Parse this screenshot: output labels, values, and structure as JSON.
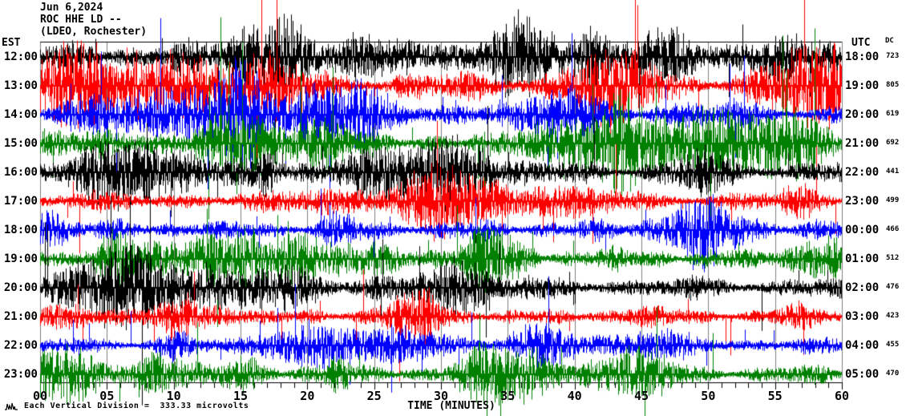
{
  "header": {
    "date": "Jun 6,2024",
    "station": "ROC HHE LD --",
    "network": "(LDEO, Rochester)"
  },
  "left_axis_label": "EST",
  "right_axis_label": "UTC",
  "dc_column_label": "DC",
  "x_axis": {
    "tick_labels": [
      "00",
      "05",
      "10",
      "15",
      "20",
      "25",
      "30",
      "35",
      "40",
      "45",
      "50",
      "55",
      "60"
    ],
    "title": "TIME (MINUTES)"
  },
  "footer": {
    "scale_note": "Each Vertical Division =  333.33 microvolts",
    "icon": "seismic-wiggle-icon"
  },
  "colors": {
    "trace_black": "#000000",
    "trace_red": "#ff0000",
    "trace_blue": "#0000ff",
    "trace_green": "#008000",
    "grid": "#808080",
    "axis": "#000000",
    "background": "#ffffff"
  },
  "chart_data": {
    "type": "line",
    "subtype": "seismogram-helicorder",
    "title": "ROC HHE LD -- (LDEO, Rochester)",
    "date": "Jun 6,2024",
    "xlabel": "TIME (MINUTES)",
    "x_range_minutes": [
      0,
      60
    ],
    "x_major_tick_minutes": 5,
    "x_minor_tick_minutes": 1,
    "grid": "vertical 5-minute gray lines",
    "vertical_division_microvolts": 333.33,
    "rows": [
      {
        "est": "12:00",
        "utc": "18:00",
        "dc": "723",
        "color": "#000000",
        "amplitude": 17,
        "seed": 11
      },
      {
        "est": "13:00",
        "utc": "19:00",
        "dc": "805",
        "color": "#ff0000",
        "amplitude": 16,
        "seed": 23
      },
      {
        "est": "14:00",
        "utc": "20:00",
        "dc": "619",
        "color": "#0000ff",
        "amplitude": 13,
        "seed": 37
      },
      {
        "est": "15:00",
        "utc": "21:00",
        "dc": "692",
        "color": "#008000",
        "amplitude": 15,
        "seed": 41
      },
      {
        "est": "16:00",
        "utc": "22:00",
        "dc": "441",
        "color": "#000000",
        "amplitude": 14,
        "seed": 53
      },
      {
        "est": "17:00",
        "utc": "23:00",
        "dc": "499",
        "color": "#ff0000",
        "amplitude": 11,
        "seed": 67
      },
      {
        "est": "18:00",
        "utc": "00:00",
        "dc": "466",
        "color": "#0000ff",
        "amplitude": 11,
        "seed": 79
      },
      {
        "est": "19:00",
        "utc": "01:00",
        "dc": "512",
        "color": "#008000",
        "amplitude": 12,
        "seed": 89
      },
      {
        "est": "20:00",
        "utc": "02:00",
        "dc": "476",
        "color": "#000000",
        "amplitude": 12,
        "seed": 97
      },
      {
        "est": "21:00",
        "utc": "03:00",
        "dc": "423",
        "color": "#ff0000",
        "amplitude": 8,
        "seed": 103
      },
      {
        "est": "22:00",
        "utc": "04:00",
        "dc": "455",
        "color": "#0000ff",
        "amplitude": 9,
        "seed": 113
      },
      {
        "est": "23:00",
        "utc": "05:00",
        "dc": "470",
        "color": "#008000",
        "amplitude": 10,
        "seed": 131
      }
    ]
  }
}
